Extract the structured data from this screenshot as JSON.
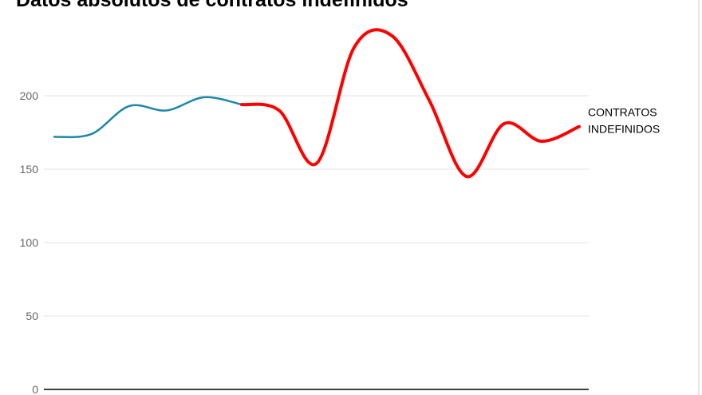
{
  "chart_data": {
    "type": "line",
    "title": "Datos absolutos de contratos indefinidos",
    "categories": [
      null,
      null,
      null,
      null,
      null,
      null,
      null,
      null,
      null,
      null,
      null,
      null,
      null,
      null,
      null
    ],
    "series": [
      {
        "color": "#1f87a8",
        "values": [
          172,
          174,
          193,
          190,
          199,
          194,
          null,
          null,
          null,
          null,
          null,
          null,
          null,
          null,
          null
        ]
      },
      {
        "name": "CONTRATOS INDEFINIDOS",
        "color": "#ff0000",
        "values": [
          null,
          null,
          null,
          null,
          null,
          194,
          190,
          154,
          233,
          241,
          197,
          145,
          181,
          169,
          179
        ]
      }
    ],
    "ylim": [
      0,
      250
    ],
    "yticks": [
      0,
      50,
      100,
      150,
      200
    ],
    "grid": true
  }
}
